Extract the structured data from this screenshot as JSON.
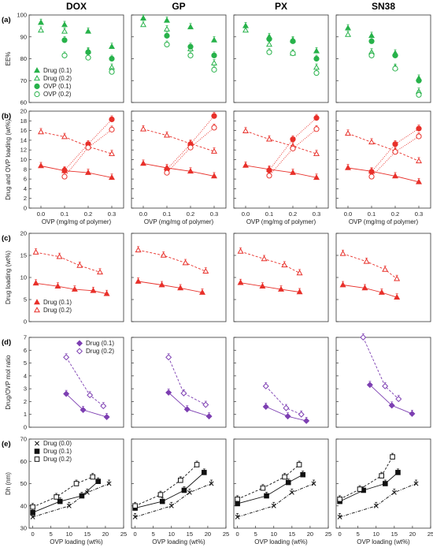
{
  "columns": [
    "DOX",
    "GP",
    "PX",
    "SN38"
  ],
  "colors": {
    "green": "#27b24a",
    "red": "#e8302a",
    "purple": "#7d3fb2",
    "black": "#111111"
  },
  "chart_data": [
    {
      "row_label": "(a)",
      "type": "scatter",
      "ylabel": "EE%",
      "ylim": [
        60,
        100
      ],
      "yticks": [
        60,
        70,
        80,
        90,
        100
      ],
      "xlim": [
        -0.05,
        0.35
      ],
      "legend": [
        "Drug (0.1)",
        "Drug (0.2)",
        "OVP (0.1)",
        "OVP (0.2)"
      ],
      "panels": [
        {
          "x": [
            0.0,
            0.1,
            0.2,
            0.3
          ],
          "drug_01": [
            96.5,
            95.5,
            92.5,
            85.5
          ],
          "drug_02": [
            93,
            92.5,
            83.5,
            76
          ],
          "ovp_01": [
            null,
            88.5,
            83,
            80
          ],
          "ovp_02": [
            null,
            81.5,
            80.5,
            74
          ]
        },
        {
          "x": [
            0.0,
            0.1,
            0.2,
            0.3
          ],
          "drug_01": [
            98.5,
            97.5,
            94.5,
            88.5
          ],
          "drug_02": [
            95.5,
            93.5,
            84.5,
            78
          ],
          "ovp_01": [
            null,
            90.5,
            85.5,
            81.5
          ],
          "ovp_02": [
            null,
            86.5,
            81.5,
            75
          ]
        },
        {
          "x": [
            0.0,
            0.1,
            0.2,
            0.3
          ],
          "drug_01": [
            95,
            90,
            88.5,
            83.5
          ],
          "drug_02": [
            93,
            86.5,
            82.5,
            76
          ],
          "ovp_01": [
            null,
            89,
            88,
            80
          ],
          "ovp_02": [
            null,
            83,
            82.5,
            73.5
          ]
        },
        {
          "x": [
            0.0,
            0.1,
            0.2,
            0.3
          ],
          "drug_01": [
            94,
            90.5,
            82.5,
            71
          ],
          "drug_02": [
            91,
            83,
            76,
            65
          ],
          "ovp_01": [
            null,
            88,
            81.5,
            70
          ],
          "ovp_02": [
            null,
            81.5,
            75.5,
            63.5
          ]
        }
      ]
    },
    {
      "row_label": "(b)",
      "type": "line",
      "ylabel": "Drug and OVP loading (wt%)",
      "xlabel": "OVP (mg/mg of polymer)",
      "ylim": [
        0,
        20
      ],
      "yticks": [
        0,
        2,
        4,
        6,
        8,
        10,
        12,
        14,
        16,
        18,
        20
      ],
      "xlim": [
        -0.05,
        0.35
      ],
      "xticks": [
        "0.0",
        "0.1",
        "0.2",
        "0.3"
      ],
      "panels": [
        {
          "x": [
            0.0,
            0.1,
            0.2,
            0.3
          ],
          "drug_01": [
            8.7,
            7.7,
            7.3,
            6.3
          ],
          "drug_02": [
            15.7,
            14.7,
            12.7,
            11.2
          ],
          "ovp_01": [
            null,
            7.8,
            13.2,
            18.3
          ],
          "ovp_02": [
            null,
            6.5,
            12.5,
            16.2
          ]
        },
        {
          "x": [
            0.0,
            0.1,
            0.2,
            0.3
          ],
          "drug_01": [
            9.2,
            8.3,
            7.6,
            6.6
          ],
          "drug_02": [
            16.3,
            15.0,
            13.3,
            11.7
          ],
          "ovp_01": [
            null,
            8.0,
            13.2,
            19.0
          ],
          "ovp_02": [
            null,
            7.3,
            12.5,
            16.6
          ]
        },
        {
          "x": [
            0.0,
            0.1,
            0.2,
            0.3
          ],
          "drug_01": [
            8.8,
            8.0,
            7.3,
            6.3
          ],
          "drug_02": [
            15.9,
            14.2,
            12.8,
            11.2
          ],
          "ovp_01": [
            null,
            7.8,
            14.2,
            18.6
          ],
          "ovp_02": [
            null,
            6.7,
            12.3,
            16.3
          ]
        },
        {
          "x": [
            0.0,
            0.1,
            0.2,
            0.3
          ],
          "drug_01": [
            8.3,
            7.6,
            6.6,
            5.4
          ],
          "drug_02": [
            15.4,
            13.6,
            11.8,
            9.7
          ],
          "ovp_01": [
            null,
            7.5,
            13.2,
            16.4
          ],
          "ovp_02": [
            null,
            6.5,
            11.6,
            14.8
          ]
        }
      ]
    },
    {
      "row_label": "(c)",
      "type": "line",
      "ylabel": "Drug loading (wt%)",
      "ylim": [
        0,
        20
      ],
      "yticks": [
        0,
        5,
        10,
        15,
        20
      ],
      "xlim": [
        -2,
        26
      ],
      "legend": [
        "Drug (0.1)",
        "Drug (0.2)"
      ],
      "panels": [
        {
          "x_01": [
            0,
            6.5,
            11.5,
            17,
            21
          ],
          "drug_01": [
            8.7,
            8.0,
            7.3,
            7.0,
            6.3
          ],
          "x_02": [
            0,
            7,
            13,
            19,
            23
          ],
          "drug_02": [
            15.7,
            14.7,
            12.7,
            11.2,
            null
          ]
        },
        {
          "x_01": [
            0,
            7,
            12.5,
            19,
            23
          ],
          "drug_01": [
            9.1,
            8.3,
            7.6,
            6.6,
            null
          ],
          "x_02": [
            0,
            7.5,
            14,
            20,
            23
          ],
          "drug_02": [
            16.2,
            15.0,
            13.3,
            11.4,
            null
          ]
        },
        {
          "x_01": [
            0,
            6.5,
            12,
            17.5,
            21
          ],
          "drug_01": [
            8.8,
            8.0,
            7.3,
            6.7,
            null
          ],
          "x_02": [
            0,
            7,
            13,
            17.5,
            21
          ],
          "drug_02": [
            15.9,
            14.2,
            12.8,
            11.0,
            null
          ]
        },
        {
          "x_01": [
            0,
            6.5,
            11.5,
            16,
            20.5
          ],
          "drug_01": [
            8.3,
            7.6,
            6.6,
            5.5,
            null
          ],
          "x_02": [
            0,
            7,
            12.5,
            16,
            20.5
          ],
          "drug_02": [
            15.4,
            13.6,
            11.8,
            9.7,
            null
          ]
        }
      ]
    },
    {
      "row_label": "(d)",
      "type": "line",
      "ylabel": "Drug/OVP mol ratio",
      "ylim": [
        0,
        7
      ],
      "yticks": [
        0,
        1,
        2,
        3,
        4,
        5,
        6,
        7
      ],
      "xlim": [
        -2,
        26
      ],
      "legend": [
        "Drug (0.1)",
        "Drug (0.2)"
      ],
      "panels": [
        {
          "x_01": [
            9,
            14,
            21
          ],
          "drug_01": [
            2.6,
            1.35,
            0.8
          ],
          "x_02": [
            9,
            16,
            20
          ],
          "drug_02": [
            5.45,
            2.5,
            1.65
          ]
        },
        {
          "x_01": [
            9,
            14.5,
            21
          ],
          "drug_01": [
            2.7,
            1.4,
            0.85
          ],
          "x_02": [
            9,
            13.5,
            20
          ],
          "drug_02": [
            5.45,
            2.65,
            1.75
          ]
        },
        {
          "x_01": [
            7.5,
            14,
            19.5
          ],
          "drug_01": [
            1.6,
            0.85,
            0.5
          ],
          "x_02": [
            7.5,
            13.5,
            18
          ],
          "drug_02": [
            3.2,
            1.5,
            1.0
          ]
        },
        {
          "x_01": [
            8,
            14.5,
            20.5
          ],
          "drug_01": [
            3.3,
            1.7,
            1.05
          ],
          "x_02": [
            6,
            12.5,
            16.5
          ],
          "drug_02": [
            7.0,
            3.2,
            2.2
          ]
        }
      ]
    },
    {
      "row_label": "(e)",
      "type": "line",
      "ylabel": "Dh (nm)",
      "xlabel": "OVP loading (wt%)",
      "ylim": [
        30,
        70
      ],
      "yticks": [
        30,
        40,
        50,
        60,
        70
      ],
      "xlim": [
        -1,
        25
      ],
      "xticks": [
        "0",
        "5",
        "10",
        "15",
        "20",
        "25"
      ],
      "legend": [
        "Drug (0.0)",
        "Drug (0.1)",
        "Drug (0.2)"
      ],
      "panels": [
        {
          "x_00": [
            0,
            10,
            15,
            21
          ],
          "drug_00": [
            35,
            40,
            46,
            50
          ],
          "x_01": [
            0,
            7.5,
            13.5,
            18
          ],
          "drug_01": [
            37,
            42,
            44.5,
            51
          ],
          "x_02": [
            0,
            6.5,
            12,
            16.5
          ],
          "drug_02": [
            39.5,
            44,
            50,
            53
          ]
        },
        {
          "x_00": [
            0,
            10,
            15,
            21
          ],
          "drug_00": [
            35,
            40,
            46,
            50
          ],
          "x_01": [
            0,
            7.5,
            13.5,
            19
          ],
          "drug_01": [
            39,
            42,
            47,
            55
          ],
          "x_02": [
            0,
            7,
            12.5,
            17
          ],
          "drug_02": [
            40,
            45,
            51.5,
            58.5
          ]
        },
        {
          "x_00": [
            0,
            10,
            15,
            21
          ],
          "drug_00": [
            35,
            40,
            46,
            50
          ],
          "x_01": [
            0,
            8,
            14,
            18
          ],
          "drug_01": [
            41,
            44.5,
            50.5,
            54
          ],
          "x_02": [
            0,
            7,
            13,
            17
          ],
          "drug_02": [
            43,
            48,
            53,
            58.5
          ]
        },
        {
          "x_00": [
            0,
            10,
            15,
            21
          ],
          "drug_00": [
            35,
            40,
            46,
            50
          ],
          "x_01": [
            0,
            6.5,
            12.5,
            16
          ],
          "drug_01": [
            42,
            47,
            50,
            55
          ],
          "x_02": [
            0,
            5.5,
            11.5,
            14.5
          ],
          "drug_02": [
            43,
            47.5,
            53.5,
            62
          ]
        }
      ]
    }
  ]
}
